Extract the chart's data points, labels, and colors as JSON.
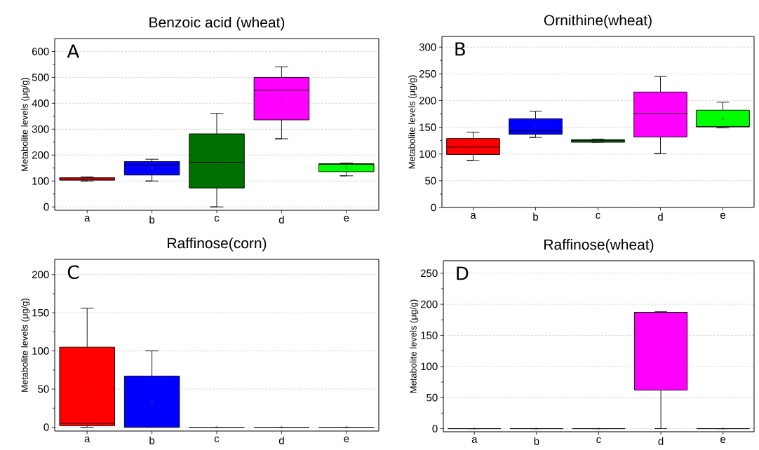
{
  "chart_data": [
    {
      "type": "box",
      "title": "Benzoic acid (wheat)",
      "ylabel": "Metabolite levels (μg/g)",
      "categories": [
        "a",
        "b",
        "c",
        "d",
        "e"
      ],
      "boxes": [
        {
          "low": 100,
          "q1": 103,
          "median": 108,
          "q3": 113,
          "high": 116,
          "mean": 108
        },
        {
          "low": 100,
          "q1": 123,
          "median": 162,
          "q3": 175,
          "high": 184,
          "mean": 150
        },
        {
          "low": 0,
          "q1": 73,
          "median": 172,
          "q3": 282,
          "high": 361,
          "mean": 178
        },
        {
          "low": 263,
          "q1": 336,
          "median": 451,
          "q3": 500,
          "high": 541,
          "mean": 418
        },
        {
          "low": 120,
          "q1": 136,
          "median": 164,
          "q3": 167,
          "high": 169,
          "mean": 151
        }
      ],
      "colors": [
        "#ff0000",
        "#0000ff",
        "#007000",
        "#ff00ff",
        "#00ff00"
      ],
      "ylim": [
        -13,
        650
      ],
      "yticks": [
        0,
        100,
        200,
        300,
        400,
        500,
        600
      ],
      "grid": "y",
      "annotations": [
        "A"
      ]
    },
    {
      "type": "box",
      "title": "Ornithine(wheat)",
      "ylabel": "Metabolite levels (μg/g)",
      "categories": [
        "a",
        "b",
        "c",
        "d",
        "e"
      ],
      "boxes": [
        {
          "low": 88,
          "q1": 99,
          "median": 113,
          "q3": 129,
          "high": 141,
          "mean": 115
        },
        {
          "low": 131,
          "q1": 137,
          "median": 143,
          "q3": 166,
          "high": 180,
          "mean": 151
        },
        {
          "low": 122,
          "q1": 122,
          "median": 125,
          "q3": 127,
          "high": 128,
          "mean": 125
        },
        {
          "low": 101,
          "q1": 132,
          "median": 176,
          "q3": 216,
          "high": 245,
          "mean": 174
        },
        {
          "low": 149,
          "q1": 151,
          "median": 151,
          "q3": 182,
          "high": 197,
          "mean": 166
        }
      ],
      "colors": [
        "#ff0000",
        "#0000ff",
        "#007000",
        "#ff00ff",
        "#00ff00"
      ],
      "ylim": [
        0,
        320
      ],
      "yticks": [
        0,
        50,
        100,
        150,
        200,
        250,
        300
      ],
      "grid": "y",
      "annotations": [
        "B"
      ]
    },
    {
      "type": "box",
      "title": "Raffinose(corn)",
      "ylabel": "Metabolite levels (μg/g)",
      "categories": [
        "a",
        "b",
        "c",
        "d",
        "e"
      ],
      "boxes": [
        {
          "low": 0,
          "q1": 2,
          "median": 5,
          "q3": 105,
          "high": 156,
          "mean": 54
        },
        {
          "low": 0,
          "q1": 0,
          "median": 0,
          "q3": 67,
          "high": 100,
          "mean": 33
        },
        {
          "low": 0,
          "q1": 0,
          "median": 0,
          "q3": 0,
          "high": 0,
          "mean": 0
        },
        {
          "low": 0,
          "q1": 0,
          "median": 0,
          "q3": 0,
          "high": 0,
          "mean": 0
        },
        {
          "low": 0,
          "q1": 0,
          "median": 0,
          "q3": 0,
          "high": 0,
          "mean": 0
        }
      ],
      "colors": [
        "#ff0000",
        "#0000ff",
        null,
        null,
        null
      ],
      "ylim": [
        -5,
        220
      ],
      "yticks": [
        0,
        50,
        100,
        150,
        200
      ],
      "grid": "y",
      "annotations": [
        "C"
      ]
    },
    {
      "type": "box",
      "title": "Raffinose(wheat)",
      "ylabel": "Metabolite levels (μg/g)",
      "categories": [
        "a",
        "b",
        "c",
        "d",
        "e"
      ],
      "boxes": [
        {
          "low": 0,
          "q1": 0,
          "median": 0,
          "q3": 0,
          "high": 0,
          "mean": 0
        },
        {
          "low": 0,
          "q1": 0,
          "median": 0,
          "q3": 0,
          "high": 0,
          "mean": 0
        },
        {
          "low": 0,
          "q1": 0,
          "median": 0,
          "q3": 0,
          "high": 0,
          "mean": 0
        },
        {
          "low": 0,
          "q1": 62,
          "median": 187,
          "q3": 187,
          "high": 188,
          "mean": 124
        },
        {
          "low": 0,
          "q1": 0,
          "median": 0,
          "q3": 0,
          "high": 0,
          "mean": 0
        }
      ],
      "colors": [
        null,
        null,
        null,
        "#ff00ff",
        null
      ],
      "ylim": [
        -5,
        270
      ],
      "yticks": [
        0,
        50,
        100,
        150,
        200,
        250
      ],
      "grid": "y",
      "annotations": [
        "D"
      ]
    }
  ]
}
